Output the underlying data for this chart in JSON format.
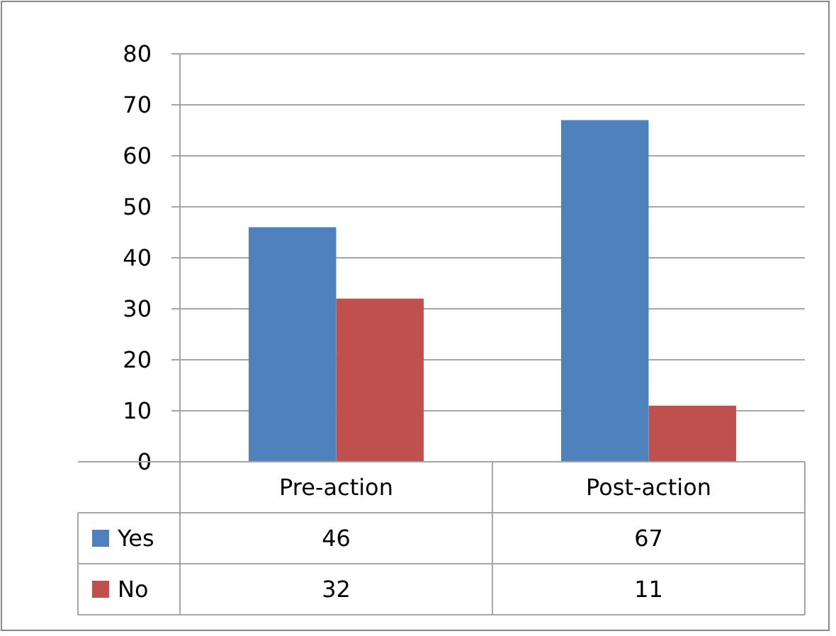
{
  "chart_data": {
    "type": "bar",
    "categories": [
      "Pre-action",
      "Post-action"
    ],
    "series": [
      {
        "name": "Yes",
        "color": "#4f81bd",
        "values": [
          46,
          67
        ]
      },
      {
        "name": "No",
        "color": "#c0504d",
        "values": [
          32,
          11
        ]
      }
    ],
    "ylim": [
      0,
      80
    ],
    "yticks": [
      0,
      10,
      20,
      30,
      40,
      50,
      60,
      70,
      80
    ],
    "grid": "y",
    "legend": "bottom",
    "data_labels": true
  }
}
